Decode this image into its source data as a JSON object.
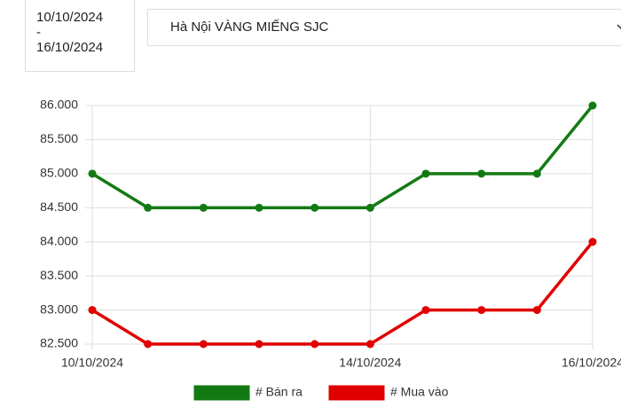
{
  "date_range": {
    "from": "10/10/2024",
    "separator": "-",
    "to": "16/10/2024"
  },
  "dropdown": {
    "label": "Hà Nội VÀNG MIẾNG SJC"
  },
  "chart_data": {
    "type": "line",
    "categories": [
      "10/10/2024",
      null,
      null,
      null,
      null,
      "14/10/2024",
      null,
      null,
      null,
      "16/10/2024"
    ],
    "series": [
      {
        "name": "# Bán ra",
        "color": "#137a13",
        "values": [
          85,
          84.5,
          84.5,
          84.5,
          84.5,
          84.5,
          85,
          85,
          85,
          86
        ]
      },
      {
        "name": "# Mua vào",
        "color": "#e00000",
        "values": [
          83,
          82.5,
          82.5,
          82.5,
          82.5,
          82.5,
          83,
          83,
          83,
          84
        ]
      }
    ],
    "ylim": [
      82.5,
      86
    ],
    "yticks": [
      {
        "value": 82.5,
        "label": "82.500"
      },
      {
        "value": 83,
        "label": "83.000"
      },
      {
        "value": 83.5,
        "label": "83.500"
      },
      {
        "value": 84,
        "label": "84.000"
      },
      {
        "value": 84.5,
        "label": "84.500"
      },
      {
        "value": 85,
        "label": "85.000"
      },
      {
        "value": 85.5,
        "label": "85.500"
      },
      {
        "value": 86,
        "label": "86.000"
      }
    ],
    "grid": true
  }
}
